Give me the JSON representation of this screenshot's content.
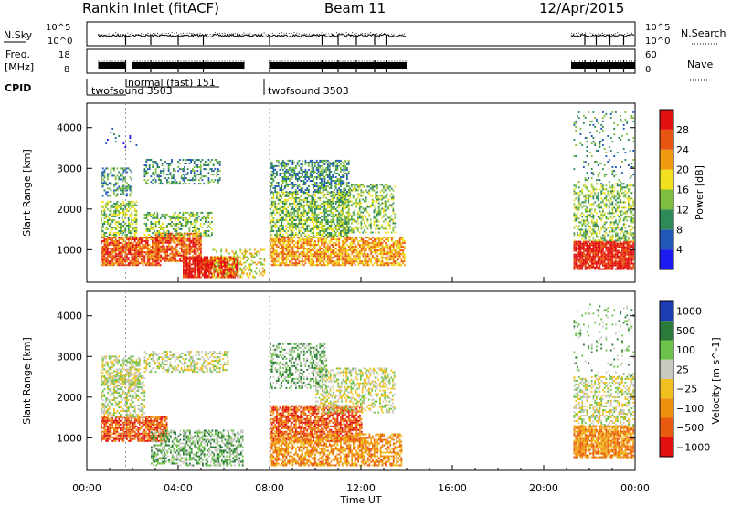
{
  "header": {
    "station": "Rankin Inlet (fitACF)",
    "beam": "Beam 11",
    "date": "12/Apr/2015"
  },
  "chart_data": [
    {
      "type": "line",
      "panel": "nsky-nsearch",
      "left_label": "N.Sky",
      "right_label": "N.Search",
      "left_ticks": [
        "10^5",
        "10^0"
      ],
      "right_ticks": [
        "10^5",
        "10^0"
      ],
      "x_range_hours": [
        0,
        24
      ],
      "data_segments_hours": [
        [
          0.5,
          14.0
        ],
        [
          21.2,
          24.0
        ]
      ],
      "dips_hours": [
        1.7,
        2.8,
        4.0,
        5.1,
        8.0,
        10.3,
        11.0,
        11.8,
        12.6,
        13.1,
        21.8,
        22.3,
        22.9,
        23.5
      ]
    },
    {
      "type": "line",
      "panel": "freq-nave",
      "left_label_line1": "Freq.",
      "left_label_line2": "[MHz]",
      "right_label": "Nave",
      "left_ticks": [
        "18",
        "8"
      ],
      "right_ticks": [
        "60",
        "0"
      ],
      "x_range_hours": [
        0,
        24
      ],
      "data_segments_hours": [
        [
          0.5,
          14.0
        ],
        [
          21.2,
          24.0
        ]
      ],
      "gap_hours": [
        [
          1.7,
          2.0
        ],
        [
          6.9,
          8.0
        ]
      ]
    },
    {
      "type": "table",
      "panel": "cpid",
      "label": "CPID",
      "segments": [
        {
          "name": "twofsound 3503",
          "start_hour": 0.5,
          "end_hour": 1.7
        },
        {
          "name": "normal (fast) 151",
          "start_hour": 1.7,
          "end_hour": 8.0
        },
        {
          "name": "twofsound 3503",
          "start_hour": 8.0,
          "end_hour": 24.0
        }
      ]
    },
    {
      "type": "heatmap",
      "panel": "power",
      "ylabel": "Slant Range [km]",
      "xlabel": "",
      "ylim_km": [
        200,
        4600
      ],
      "y_ticks": [
        1000,
        2000,
        3000,
        4000
      ],
      "colorbar_label": "Power [dB]",
      "colorbar_ticks": [
        4,
        8,
        12,
        16,
        20,
        24,
        28
      ],
      "colorbar_colors": [
        "#1b1bf0",
        "#2158b8",
        "#2f8a5a",
        "#7fbf3f",
        "#f0e020",
        "#f09a10",
        "#e85510",
        "#e01010"
      ],
      "blobs": [
        {
          "t0": 0.6,
          "t1": 3.2,
          "r0": 600,
          "r1": 1300,
          "dens": 0.85,
          "lvl": 6
        },
        {
          "t0": 3.0,
          "t1": 5.0,
          "r0": 700,
          "r1": 1400,
          "dens": 0.8,
          "lvl": 6
        },
        {
          "t0": 4.2,
          "t1": 6.6,
          "r0": 300,
          "r1": 800,
          "dens": 0.9,
          "lvl": 7
        },
        {
          "t0": 0.6,
          "t1": 2.2,
          "r0": 1300,
          "r1": 2200,
          "dens": 0.55,
          "lvl": 3
        },
        {
          "t0": 0.6,
          "t1": 2.0,
          "r0": 2300,
          "r1": 3000,
          "dens": 0.45,
          "lvl": 2
        },
        {
          "t0": 2.5,
          "t1": 5.8,
          "r0": 2600,
          "r1": 3200,
          "dens": 0.4,
          "lvl": 2
        },
        {
          "t0": 2.5,
          "t1": 5.5,
          "r0": 1300,
          "r1": 1900,
          "dens": 0.45,
          "lvl": 3
        },
        {
          "t0": 5.5,
          "t1": 7.8,
          "r0": 300,
          "r1": 1000,
          "dens": 0.35,
          "lvl": 4
        },
        {
          "t0": 8.0,
          "t1": 13.9,
          "r0": 600,
          "r1": 1300,
          "dens": 0.75,
          "lvl": 5
        },
        {
          "t0": 8.0,
          "t1": 11.5,
          "r0": 1300,
          "r1": 2400,
          "dens": 0.6,
          "lvl": 3
        },
        {
          "t0": 8.0,
          "t1": 11.5,
          "r0": 2400,
          "r1": 3200,
          "dens": 0.55,
          "lvl": 2
        },
        {
          "t0": 11.0,
          "t1": 13.5,
          "r0": 1400,
          "r1": 2600,
          "dens": 0.4,
          "lvl": 3
        },
        {
          "t0": 21.3,
          "t1": 23.9,
          "r0": 500,
          "r1": 1200,
          "dens": 0.9,
          "lvl": 7
        },
        {
          "t0": 21.3,
          "t1": 23.9,
          "r0": 1200,
          "r1": 2600,
          "dens": 0.45,
          "lvl": 3
        },
        {
          "t0": 21.3,
          "t1": 23.9,
          "r0": 2600,
          "r1": 4400,
          "dens": 0.12,
          "lvl": 2
        },
        {
          "t0": 0.6,
          "t1": 2.5,
          "r0": 3500,
          "r1": 4000,
          "dens": 0.08,
          "lvl": 1
        }
      ]
    },
    {
      "type": "heatmap",
      "panel": "velocity",
      "ylabel": "Slant Range [km]",
      "xlabel": "Time UT",
      "x_ticks": [
        "00:00",
        "04:00",
        "08:00",
        "12:00",
        "16:00",
        "20:00",
        "00:00"
      ],
      "ylim_km": [
        200,
        4600
      ],
      "y_ticks": [
        1000,
        2000,
        3000,
        4000
      ],
      "colorbar_label": "Velocity [m s^-1]",
      "colorbar_ticks": [
        "1000",
        "500",
        "100",
        "25",
        "−25",
        "−100",
        "−500",
        "−1000"
      ],
      "colorbar_colors": [
        "#1e3cb4",
        "#2a7a3a",
        "#6cc24a",
        "#c8c8c0",
        "#f0c020",
        "#f09010",
        "#e85a10",
        "#e01010"
      ],
      "blobs": [
        {
          "t0": 0.6,
          "t1": 3.5,
          "r0": 900,
          "r1": 1500,
          "dens": 0.8,
          "lvl": 6
        },
        {
          "t0": 0.6,
          "t1": 2.5,
          "r0": 1500,
          "r1": 2500,
          "dens": 0.5,
          "lvl": 3
        },
        {
          "t0": 0.6,
          "t1": 2.3,
          "r0": 2300,
          "r1": 3000,
          "dens": 0.55,
          "lvl": 3
        },
        {
          "t0": 2.5,
          "t1": 6.2,
          "r0": 2600,
          "r1": 3100,
          "dens": 0.45,
          "lvl": 3
        },
        {
          "t0": 2.8,
          "t1": 6.8,
          "r0": 300,
          "r1": 1200,
          "dens": 0.55,
          "lvl": 2
        },
        {
          "t0": 8.0,
          "t1": 12.0,
          "r0": 900,
          "r1": 1800,
          "dens": 0.75,
          "lvl": 6
        },
        {
          "t0": 8.0,
          "t1": 13.8,
          "r0": 300,
          "r1": 1100,
          "dens": 0.65,
          "lvl": 5
        },
        {
          "t0": 10.0,
          "t1": 13.5,
          "r0": 1600,
          "r1": 2700,
          "dens": 0.45,
          "lvl": 3
        },
        {
          "t0": 8.0,
          "t1": 10.5,
          "r0": 2200,
          "r1": 3300,
          "dens": 0.4,
          "lvl": 2
        },
        {
          "t0": 21.3,
          "t1": 23.9,
          "r0": 500,
          "r1": 1300,
          "dens": 0.85,
          "lvl": 5
        },
        {
          "t0": 21.3,
          "t1": 23.9,
          "r0": 1300,
          "r1": 2500,
          "dens": 0.45,
          "lvl": 3
        },
        {
          "t0": 21.3,
          "t1": 23.9,
          "r0": 2500,
          "r1": 4300,
          "dens": 0.1,
          "lvl": 2
        }
      ]
    }
  ]
}
